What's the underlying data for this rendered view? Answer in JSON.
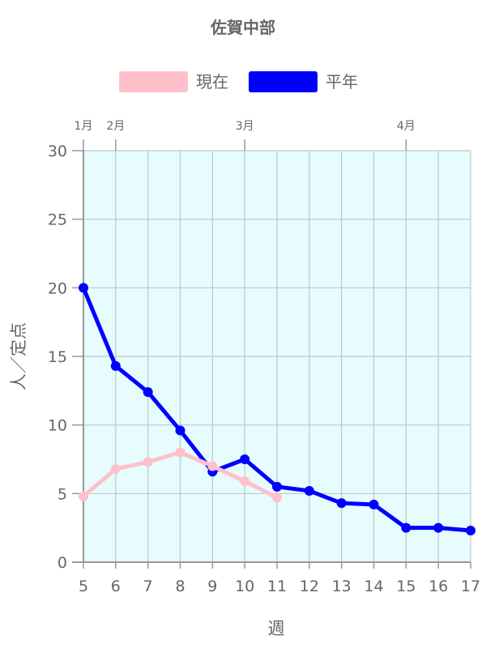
{
  "chart_data": {
    "type": "line",
    "title": "佐賀中部",
    "xlabel": "週",
    "ylabel": "人／定点",
    "x": [
      5,
      6,
      7,
      8,
      9,
      10,
      11,
      12,
      13,
      14,
      15,
      16,
      17
    ],
    "xlim": [
      5,
      17
    ],
    "ylim": [
      0,
      30
    ],
    "yticks": [
      0,
      5,
      10,
      15,
      20,
      25,
      30
    ],
    "grid": true,
    "legend_position": "top",
    "plot_background": "#e6fcfd",
    "month_markers": [
      {
        "label": "1月",
        "week": 5
      },
      {
        "label": "2月",
        "week": 6
      },
      {
        "label": "3月",
        "week": 10
      },
      {
        "label": "4月",
        "week": 15
      }
    ],
    "series": [
      {
        "name": "現在",
        "color": "#ffc0cb",
        "values": [
          4.8,
          6.8,
          7.3,
          8.0,
          7.0,
          5.9,
          4.7,
          null,
          null,
          null,
          null,
          null,
          null
        ]
      },
      {
        "name": "平年",
        "color": "#0000ff",
        "values": [
          20.0,
          14.3,
          12.4,
          9.6,
          6.6,
          7.5,
          5.5,
          5.2,
          4.3,
          4.2,
          2.5,
          2.5,
          2.3
        ]
      }
    ]
  }
}
